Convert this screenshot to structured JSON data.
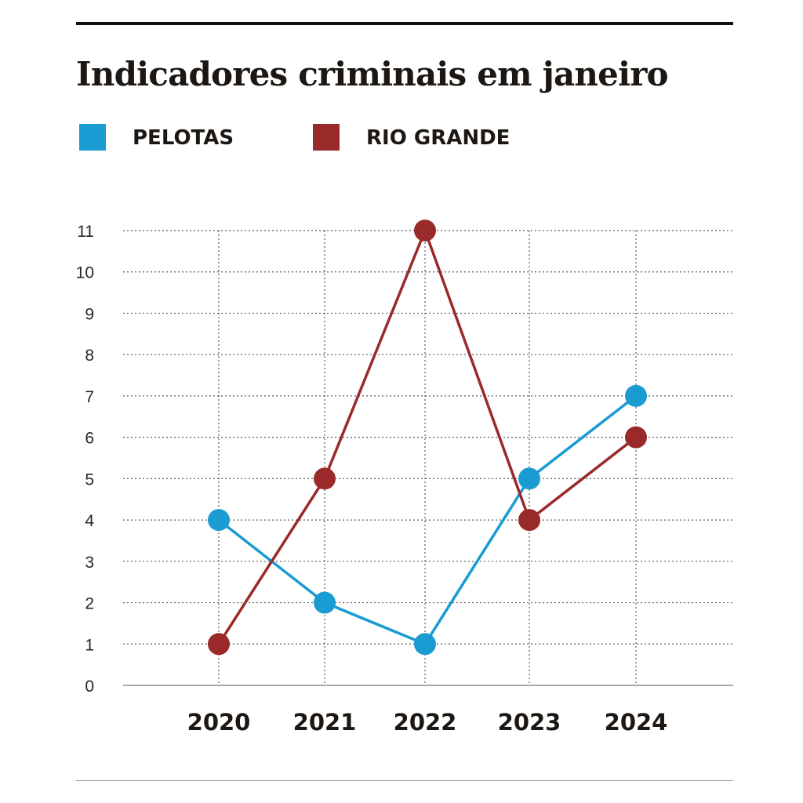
{
  "title": "Indicadores criminais em janeiro",
  "legend": [
    {
      "label": "PELOTAS",
      "color": "#1a9bd2"
    },
    {
      "label": "RIO GRANDE",
      "color": "#9a2a2a"
    }
  ],
  "chart_data": {
    "type": "line",
    "title": "Indicadores criminais em janeiro",
    "xlabel": "",
    "ylabel": "",
    "categories": [
      "2020",
      "2021",
      "2022",
      "2023",
      "2024"
    ],
    "ylim": [
      0,
      11
    ],
    "yticks": [
      0,
      1,
      2,
      3,
      4,
      5,
      6,
      7,
      8,
      9,
      10,
      11
    ],
    "grid": true,
    "legend_position": "top-left",
    "series": [
      {
        "name": "PELOTAS",
        "color": "#1a9bd2",
        "values": [
          4,
          2,
          1,
          5,
          7
        ]
      },
      {
        "name": "RIO GRANDE",
        "color": "#9a2a2a",
        "values": [
          1,
          5,
          11,
          4,
          6
        ]
      }
    ]
  }
}
